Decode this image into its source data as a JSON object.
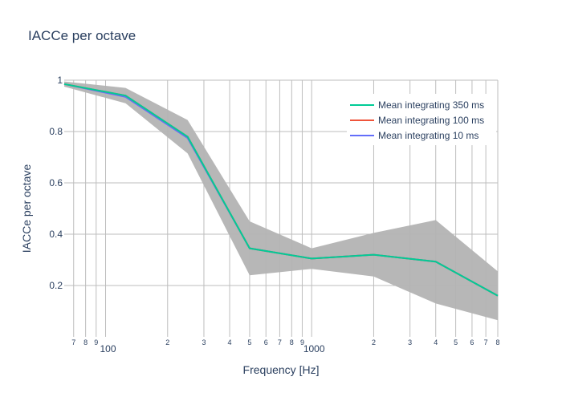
{
  "chart_data": {
    "type": "line",
    "title": "IACCe per octave",
    "xlabel": "Frequency [Hz]",
    "ylabel": "IACCe per octave",
    "x_scale": "log",
    "xlim": [
      63,
      8000
    ],
    "ylim": [
      0.0,
      1.0
    ],
    "grid": true,
    "legend_position": "top-right",
    "x_tick_labels": {
      "minor": [
        {
          "x": 70,
          "label": "7"
        },
        {
          "x": 80,
          "label": "8"
        },
        {
          "x": 90,
          "label": "9"
        },
        {
          "x": 200,
          "label": "2"
        },
        {
          "x": 300,
          "label": "3"
        },
        {
          "x": 400,
          "label": "4"
        },
        {
          "x": 500,
          "label": "5"
        },
        {
          "x": 600,
          "label": "6"
        },
        {
          "x": 700,
          "label": "7"
        },
        {
          "x": 800,
          "label": "8"
        },
        {
          "x": 900,
          "label": "9"
        },
        {
          "x": 2000,
          "label": "2"
        },
        {
          "x": 3000,
          "label": "3"
        },
        {
          "x": 4000,
          "label": "4"
        },
        {
          "x": 5000,
          "label": "5"
        },
        {
          "x": 6000,
          "label": "6"
        },
        {
          "x": 7000,
          "label": "7"
        },
        {
          "x": 8000,
          "label": "8"
        }
      ],
      "major": [
        {
          "x": 100,
          "label": "100"
        },
        {
          "x": 1000,
          "label": "1000"
        }
      ]
    },
    "y_ticks": [
      {
        "y": 0.2,
        "label": "0.2"
      },
      {
        "y": 0.4,
        "label": "0.4"
      },
      {
        "y": 0.6,
        "label": "0.6"
      },
      {
        "y": 0.8,
        "label": "0.8"
      },
      {
        "y": 1.0,
        "label": "1"
      }
    ],
    "x": [
      63,
      125,
      250,
      500,
      1000,
      2000,
      4000,
      8000
    ],
    "band": {
      "upper": [
        0.995,
        0.97,
        0.845,
        0.45,
        0.345,
        0.405,
        0.455,
        0.255
      ],
      "lower": [
        0.975,
        0.91,
        0.715,
        0.24,
        0.265,
        0.235,
        0.13,
        0.065
      ],
      "color": "#b3b3b3"
    },
    "series": [
      {
        "name": "Mean integrating 350 ms",
        "color": "#00cc96",
        "values": [
          0.985,
          0.94,
          0.78,
          0.345,
          0.305,
          0.32,
          0.293,
          0.16
        ]
      },
      {
        "name": "Mean integrating 100 ms",
        "color": "#ef553b",
        "values": [
          0.985,
          0.94,
          0.78,
          0.345,
          0.305,
          0.32,
          0.293,
          0.16
        ]
      },
      {
        "name": "Mean integrating 10 ms",
        "color": "#636efa",
        "values": [
          0.985,
          0.935,
          0.775,
          0.345,
          0.305,
          0.32,
          0.293,
          0.16
        ]
      }
    ]
  }
}
